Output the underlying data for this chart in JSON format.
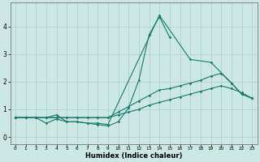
{
  "xlabel": "Humidex (Indice chaleur)",
  "x": [
    0,
    1,
    2,
    3,
    4,
    5,
    6,
    7,
    8,
    9,
    10,
    11,
    12,
    13,
    14,
    15,
    16,
    17,
    18,
    19,
    20,
    21,
    22,
    23
  ],
  "line1": [
    0.7,
    0.7,
    0.7,
    0.7,
    0.8,
    0.55,
    0.55,
    0.5,
    0.45,
    0.4,
    0.55,
    1.05,
    2.05,
    3.7,
    4.35,
    3.6,
    null,
    null,
    null,
    null,
    null,
    null,
    null,
    null
  ],
  "line2": [
    0.7,
    0.7,
    0.7,
    0.5,
    0.65,
    0.55,
    0.55,
    0.5,
    0.5,
    0.45,
    null,
    null,
    null,
    null,
    4.4,
    null,
    null,
    2.8,
    null,
    2.7,
    null,
    1.95,
    1.55,
    1.4
  ],
  "line3": [
    0.7,
    0.7,
    0.7,
    0.7,
    0.7,
    0.7,
    0.7,
    0.7,
    0.7,
    0.7,
    0.9,
    1.1,
    1.3,
    1.5,
    1.7,
    1.75,
    1.85,
    1.95,
    2.05,
    2.2,
    2.3,
    1.95,
    1.55,
    1.4
  ],
  "line4": [
    0.7,
    0.7,
    0.7,
    0.7,
    0.7,
    0.7,
    0.7,
    0.7,
    0.7,
    0.7,
    0.8,
    0.9,
    1.0,
    1.15,
    1.25,
    1.35,
    1.45,
    1.55,
    1.65,
    1.75,
    1.85,
    1.75,
    1.6,
    1.4
  ],
  "bg_color": "#cce8e4",
  "grid_color": "#aed4d0",
  "line_color": "#1a7a6a",
  "ylim": [
    -0.25,
    4.85
  ],
  "xlim": [
    -0.5,
    23.5
  ],
  "yticks": [
    0,
    1,
    2,
    3,
    4
  ],
  "xticks": [
    0,
    1,
    2,
    3,
    4,
    5,
    6,
    7,
    8,
    9,
    10,
    11,
    12,
    13,
    14,
    15,
    16,
    17,
    18,
    19,
    20,
    21,
    22,
    23
  ]
}
